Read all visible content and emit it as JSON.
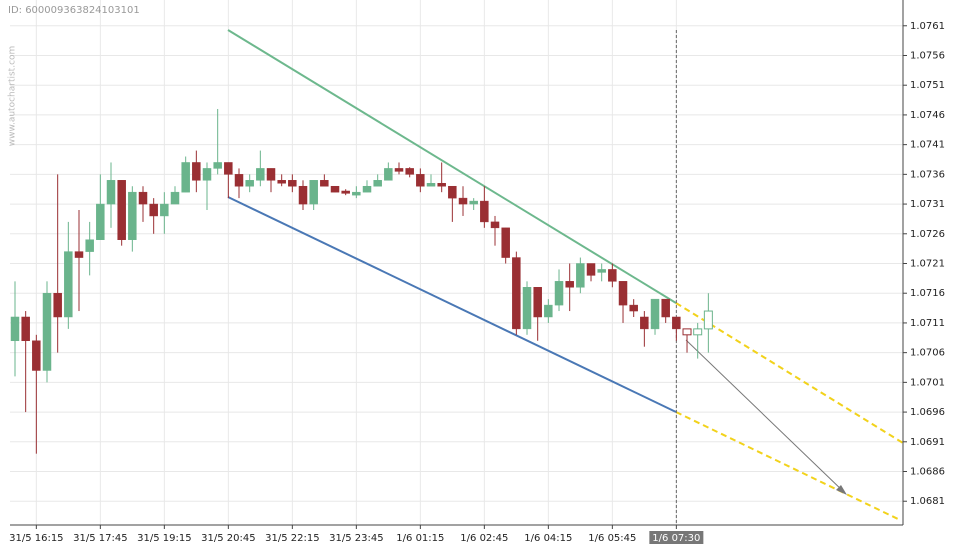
{
  "chart_data": {
    "type": "candlestick",
    "id_label": "ID: 600009363824103101",
    "watermark": "www.autochartist.com",
    "categories": [
      null,
      null,
      "31/5 16:15",
      null,
      null,
      null,
      null,
      null,
      "31/5 17:45",
      null,
      null,
      null,
      null,
      null,
      "31/5 19:15",
      null,
      null,
      null,
      null,
      null,
      "31/5 20:45",
      null,
      null,
      null,
      null,
      null,
      "31/5 22:15",
      null,
      null,
      null,
      null,
      null,
      "31/5 23:45",
      null,
      null,
      null,
      null,
      null,
      "1/6 01:15",
      null,
      null,
      null,
      null,
      null,
      "1/6 02:45",
      null,
      null,
      null,
      null,
      null,
      "1/6 04:15",
      null,
      null,
      null,
      null,
      null,
      "1/6 05:45",
      null,
      null,
      null,
      null,
      null,
      "1/6 07:30",
      null,
      null,
      null
    ],
    "open": [
      1.0708,
      1.0712,
      1.0708,
      1.0703,
      1.0716,
      1.0712,
      1.0723,
      1.0723,
      1.0725,
      1.0731,
      1.0735,
      1.0725,
      1.0733,
      1.0731,
      1.0729,
      1.0731,
      1.0733,
      1.0738,
      1.0735,
      1.0737,
      1.0738,
      1.0736,
      1.0734,
      1.0735,
      1.0737,
      1.0735,
      1.0735,
      1.0734,
      1.0731,
      1.0735,
      1.0734,
      1.07332,
      1.07325,
      1.0733,
      1.0734,
      1.0735,
      1.0737,
      1.0737,
      1.0736,
      1.0734,
      1.07345,
      1.0734,
      1.0732,
      1.0731,
      1.07315,
      1.0728,
      1.0727,
      1.0722,
      1.071,
      1.0717,
      1.0712,
      1.0714,
      1.0718,
      1.0717,
      1.0721,
      1.07195,
      1.072,
      1.0718,
      1.0714,
      1.0712,
      1.071,
      1.0715,
      1.0712,
      1.071,
      1.0709,
      1.071
    ],
    "high": [
      1.0718,
      1.0713,
      1.0709,
      1.0718,
      1.0736,
      1.0728,
      1.073,
      1.0728,
      1.0736,
      1.0738,
      1.0735,
      1.0734,
      1.0734,
      1.0732,
      1.0733,
      1.0734,
      1.0739,
      1.074,
      1.0738,
      1.0747,
      1.0738,
      1.0737,
      1.0736,
      1.074,
      1.0737,
      1.0736,
      1.0736,
      1.0735,
      1.0735,
      1.0736,
      1.0734,
      1.07335,
      1.0734,
      1.0735,
      1.0736,
      1.0738,
      1.0738,
      1.07372,
      1.0737,
      1.0736,
      1.0738,
      1.0734,
      1.0734,
      1.0732,
      1.0734,
      1.0729,
      1.0727,
      1.0723,
      1.0718,
      1.0717,
      1.0715,
      1.072,
      1.0721,
      1.0722,
      1.0721,
      1.0721,
      1.0721,
      1.0718,
      1.0715,
      1.0713,
      1.0715,
      1.0715,
      1.0712,
      1.071,
      1.0711,
      1.0716
    ],
    "low": [
      1.0702,
      1.0696,
      1.0689,
      1.0701,
      1.0706,
      1.071,
      1.0713,
      1.0719,
      1.0725,
      1.0727,
      1.0724,
      1.0723,
      1.0728,
      1.0726,
      1.0726,
      1.0731,
      1.0733,
      1.0733,
      1.073,
      1.0736,
      1.0732,
      1.0732,
      1.0733,
      1.0734,
      1.0733,
      1.0734,
      1.0733,
      1.073,
      1.073,
      1.0734,
      1.0733,
      1.07325,
      1.0732,
      1.0733,
      1.0734,
      1.0735,
      1.0736,
      1.07355,
      1.0733,
      1.0734,
      1.0733,
      1.0728,
      1.0729,
      1.073,
      1.0727,
      1.0724,
      1.0721,
      1.0709,
      1.0709,
      1.0708,
      1.0711,
      1.0713,
      1.0713,
      1.0716,
      1.0718,
      1.0718,
      1.0717,
      1.0711,
      1.0712,
      1.0707,
      1.0709,
      1.0711,
      1.0708,
      1.0706,
      1.0705,
      1.0706
    ],
    "close": [
      1.0712,
      1.0708,
      1.0703,
      1.0716,
      1.0712,
      1.0723,
      1.0722,
      1.0725,
      1.0731,
      1.0735,
      1.0725,
      1.0733,
      1.0731,
      1.0729,
      1.0731,
      1.0733,
      1.0738,
      1.0735,
      1.0737,
      1.0738,
      1.0736,
      1.0734,
      1.0735,
      1.0737,
      1.0735,
      1.07345,
      1.0734,
      1.0731,
      1.0735,
      1.0734,
      1.0733,
      1.07328,
      1.0733,
      1.0734,
      1.0735,
      1.0737,
      1.07365,
      1.0736,
      1.0734,
      1.07345,
      1.0734,
      1.0732,
      1.0731,
      1.07315,
      1.0728,
      1.0727,
      1.0722,
      1.071,
      1.0717,
      1.0712,
      1.0714,
      1.0718,
      1.0717,
      1.0721,
      1.0719,
      1.072,
      1.0718,
      1.0714,
      1.0713,
      1.071,
      1.0715,
      1.0712,
      1.071,
      1.0709,
      1.071,
      1.0713
    ],
    "up_color": "#6ab48c",
    "down_color": "#9a2f33",
    "hollow_last": 3,
    "ylim": [
      1.0677,
      1.0765
    ],
    "yticks": [
      1.0681,
      1.0686,
      1.0691,
      1.0696,
      1.0701,
      1.0706,
      1.0711,
      1.0716,
      1.0721,
      1.0726,
      1.0731,
      1.0736,
      1.0741,
      1.0746,
      1.0751,
      1.0756,
      1.0761
    ],
    "grid": true
  }
}
